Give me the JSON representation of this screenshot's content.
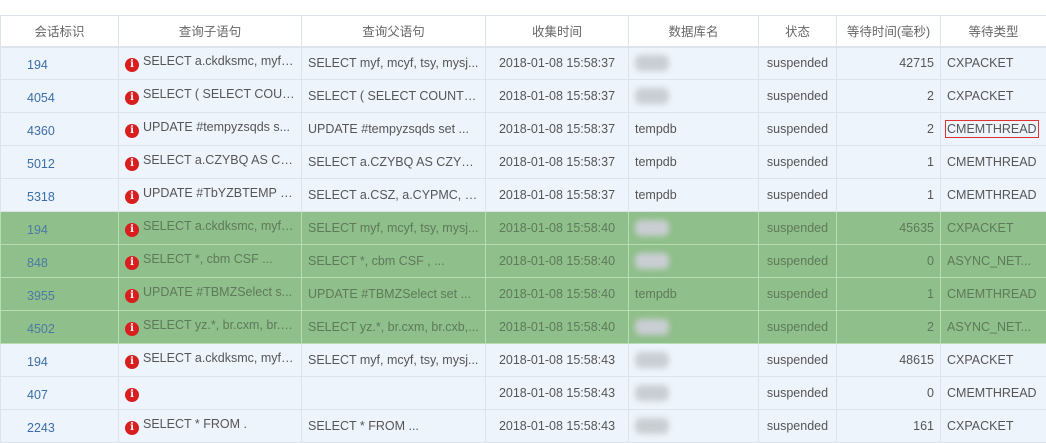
{
  "columns": [
    "会话标识",
    "查询子语句",
    "查询父语句",
    "收集时间",
    "数据库名",
    "状态",
    "等待时间(毫秒)",
    "等待类型"
  ],
  "highlight_color": "#8fbf8a",
  "rows": [
    {
      "id": "194",
      "child": "SELECT a.ckdksmc, myf, ...",
      "parent": "SELECT myf, mcyf, tsy, mysj...",
      "time": "2018-01-08 15:58:37",
      "db": "",
      "status": "suspended",
      "wait": "42715",
      "type": "CXPACKET",
      "highlight": false
    },
    {
      "id": "4054",
      "child": "SELECT ( SELECT COUN...",
      "parent": "SELECT ( SELECT COUNT(C...",
      "time": "2018-01-08 15:58:37",
      "db": "",
      "status": "suspended",
      "wait": "2",
      "type": "CXPACKET",
      "highlight": false
    },
    {
      "id": "4360",
      "child": "UPDATE #tempyzsqds s...",
      "parent": "UPDATE #tempyzsqds set ...",
      "time": "2018-01-08 15:58:37",
      "db": "tempdb",
      "status": "suspended",
      "wait": "2",
      "type": "CMEMTHREAD",
      "highlight": false,
      "boxed": true
    },
    {
      "id": "5012",
      "child": "SELECT a.CZYBQ AS CZY...",
      "parent": "SELECT a.CZYBQ AS CZYBQ...",
      "time": "2018-01-08 15:58:37",
      "db": "tempdb",
      "status": "suspended",
      "wait": "1",
      "type": "CMEMTHREAD",
      "highlight": false
    },
    {
      "id": "5318",
      "child": "UPDATE #TbYZBTEMP s...",
      "parent": "SELECT a.CSZ, a.CYPMC, a....",
      "time": "2018-01-08 15:58:37",
      "db": "tempdb",
      "status": "suspended",
      "wait": "1",
      "type": "CMEMTHREAD",
      "highlight": false
    },
    {
      "id": "194",
      "child": "SELECT a.ckdksmc, myf, ...",
      "parent": "SELECT myf, mcyf, tsy, mysj...",
      "time": "2018-01-08 15:58:40",
      "db": "",
      "status": "suspended",
      "wait": "45635",
      "type": "CXPACKET",
      "highlight": true
    },
    {
      "id": "848",
      "child": "SELECT *, cbm CSF ...",
      "parent": "SELECT *, cbm CSF , ...",
      "time": "2018-01-08 15:58:40",
      "db": "",
      "status": "suspended",
      "wait": "0",
      "type": "ASYNC_NET...",
      "highlight": true
    },
    {
      "id": "3955",
      "child": "UPDATE #TBMZSelect s...",
      "parent": "UPDATE #TBMZSelect set ...",
      "time": "2018-01-08 15:58:40",
      "db": "tempdb",
      "status": "suspended",
      "wait": "1",
      "type": "CMEMTHREAD",
      "highlight": true
    },
    {
      "id": "4502",
      "child": "SELECT yz.*, br.cxm, br.c...",
      "parent": "SELECT yz.*, br.cxm, br.cxb,...",
      "time": "2018-01-08 15:58:40",
      "db": "",
      "status": "suspended",
      "wait": "2",
      "type": "ASYNC_NET...",
      "highlight": true
    },
    {
      "id": "194",
      "child": "SELECT a.ckdksmc, myf, ...",
      "parent": "SELECT myf, mcyf, tsy, mysj...",
      "time": "2018-01-08 15:58:43",
      "db": "",
      "status": "suspended",
      "wait": "48615",
      "type": "CXPACKET",
      "highlight": false
    },
    {
      "id": "407",
      "child": "",
      "parent": "",
      "time": "2018-01-08 15:58:43",
      "db": "",
      "status": "suspended",
      "wait": "0",
      "type": "CMEMTHREAD",
      "highlight": false
    },
    {
      "id": "2243",
      "child": "SELECT * FROM .",
      "parent": "SELECT * FROM ...",
      "time": "2018-01-08 15:58:43",
      "db": "",
      "status": "suspended",
      "wait": "161",
      "type": "CXPACKET",
      "highlight": false
    }
  ]
}
